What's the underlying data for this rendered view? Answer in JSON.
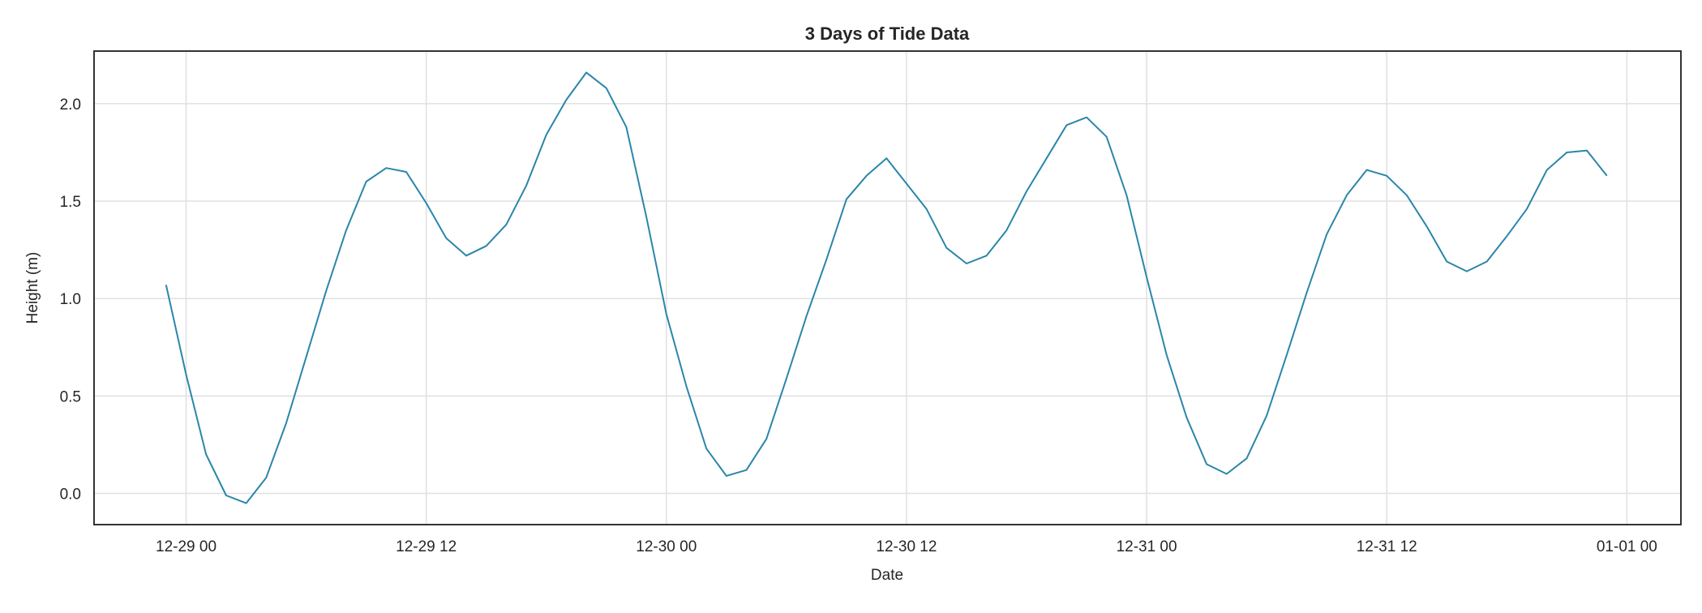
{
  "chart_data": {
    "type": "line",
    "title": "3 Days of Tide Data",
    "xlabel": "Date",
    "ylabel": "Height (m)",
    "x_start": "12-28 23:00",
    "x_interval": "1 hour",
    "xlim": [
      "12-28 19:24",
      "12-31 22:42"
    ],
    "ylim": [
      -0.16,
      2.27
    ],
    "grid": true,
    "line_color": "#2a86a9",
    "x_ticks": [
      {
        "label": "12-29 00",
        "hour": 0
      },
      {
        "label": "12-29 12",
        "hour": 12
      },
      {
        "label": "12-30 00",
        "hour": 24
      },
      {
        "label": "12-30 12",
        "hour": 36
      },
      {
        "label": "12-31 00",
        "hour": 48
      },
      {
        "label": "12-31 12",
        "hour": 60
      },
      {
        "label": "01-01 00",
        "hour": 72
      }
    ],
    "y_ticks": [
      {
        "label": "0.0",
        "value": 0
      },
      {
        "label": "0.5",
        "value": 0.5
      },
      {
        "label": "1.0",
        "value": 1
      },
      {
        "label": "1.5",
        "value": 1.5
      },
      {
        "label": "2.0",
        "value": 2
      }
    ],
    "series": [
      {
        "values": [
          1.07,
          0.61,
          0.2,
          -0.01,
          -0.05,
          0.08,
          0.36,
          0.7,
          1.04,
          1.35,
          1.6,
          1.67,
          1.65,
          1.49,
          1.31,
          1.22,
          1.27,
          1.38,
          1.58,
          1.84,
          2.02,
          2.16,
          2.08,
          1.88,
          1.42,
          0.92,
          0.55,
          0.23,
          0.09,
          0.12,
          0.28,
          0.59,
          0.91,
          1.2,
          1.51,
          1.63,
          1.72,
          1.59,
          1.46,
          1.26,
          1.18,
          1.22,
          1.35,
          1.55,
          1.72,
          1.89,
          1.93,
          1.83,
          1.53,
          1.11,
          0.71,
          0.39,
          0.15,
          0.1,
          0.18,
          0.4,
          0.71,
          1.03,
          1.33,
          1.53,
          1.66,
          1.63,
          1.53,
          1.37,
          1.19,
          1.14,
          1.19,
          1.32,
          1.46,
          1.66,
          1.75,
          1.76,
          1.63
        ]
      }
    ]
  }
}
